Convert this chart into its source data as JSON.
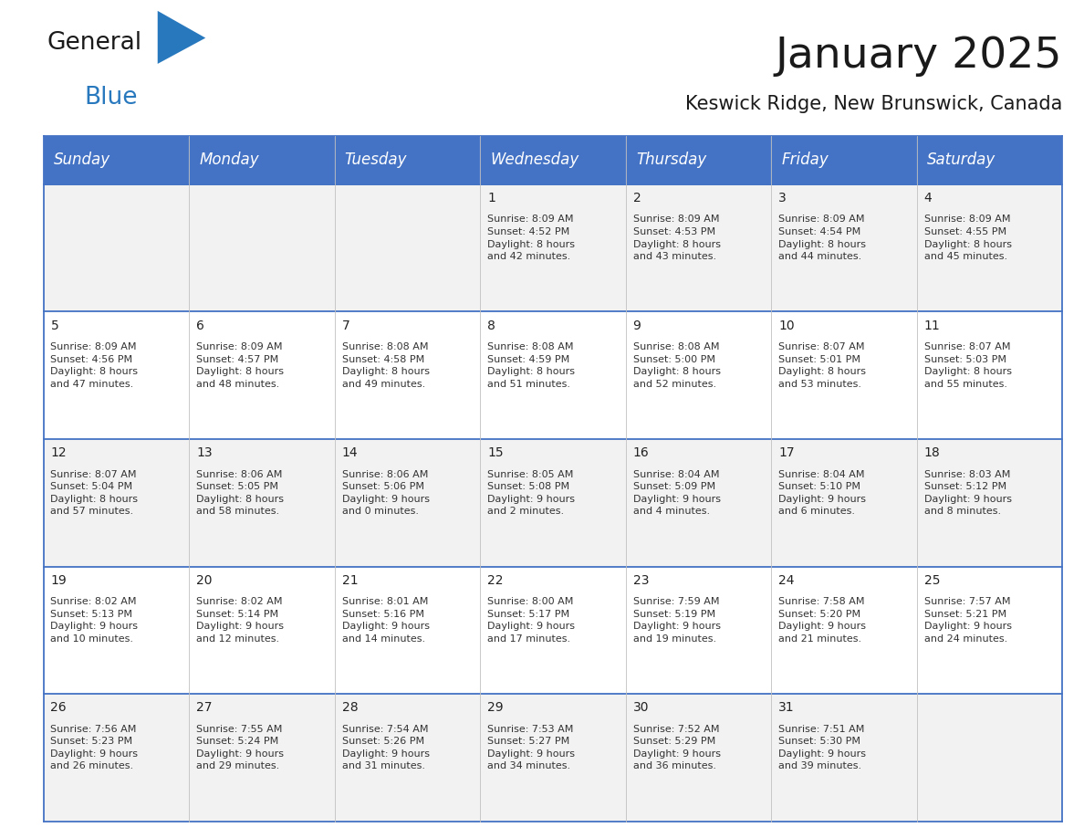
{
  "title": "January 2025",
  "subtitle": "Keswick Ridge, New Brunswick, Canada",
  "header_color": "#4472C4",
  "header_text_color": "#FFFFFF",
  "cell_bg_even": "#F2F2F2",
  "cell_bg_odd": "#FFFFFF",
  "border_color": "#4472C4",
  "row_line_color": "#4472C4",
  "col_line_color": "#C0C0C0",
  "days_of_week": [
    "Sunday",
    "Monday",
    "Tuesday",
    "Wednesday",
    "Thursday",
    "Friday",
    "Saturday"
  ],
  "title_fontsize": 34,
  "subtitle_fontsize": 15,
  "header_fontsize": 12,
  "day_num_fontsize": 10,
  "cell_fontsize": 8,
  "logo_color1": "#1a1a1a",
  "logo_color2": "#2878BE",
  "logo_triangle_color": "#2878BE",
  "weeks": [
    [
      {
        "day": "",
        "text": ""
      },
      {
        "day": "",
        "text": ""
      },
      {
        "day": "",
        "text": ""
      },
      {
        "day": "1",
        "text": "Sunrise: 8:09 AM\nSunset: 4:52 PM\nDaylight: 8 hours\nand 42 minutes."
      },
      {
        "day": "2",
        "text": "Sunrise: 8:09 AM\nSunset: 4:53 PM\nDaylight: 8 hours\nand 43 minutes."
      },
      {
        "day": "3",
        "text": "Sunrise: 8:09 AM\nSunset: 4:54 PM\nDaylight: 8 hours\nand 44 minutes."
      },
      {
        "day": "4",
        "text": "Sunrise: 8:09 AM\nSunset: 4:55 PM\nDaylight: 8 hours\nand 45 minutes."
      }
    ],
    [
      {
        "day": "5",
        "text": "Sunrise: 8:09 AM\nSunset: 4:56 PM\nDaylight: 8 hours\nand 47 minutes."
      },
      {
        "day": "6",
        "text": "Sunrise: 8:09 AM\nSunset: 4:57 PM\nDaylight: 8 hours\nand 48 minutes."
      },
      {
        "day": "7",
        "text": "Sunrise: 8:08 AM\nSunset: 4:58 PM\nDaylight: 8 hours\nand 49 minutes."
      },
      {
        "day": "8",
        "text": "Sunrise: 8:08 AM\nSunset: 4:59 PM\nDaylight: 8 hours\nand 51 minutes."
      },
      {
        "day": "9",
        "text": "Sunrise: 8:08 AM\nSunset: 5:00 PM\nDaylight: 8 hours\nand 52 minutes."
      },
      {
        "day": "10",
        "text": "Sunrise: 8:07 AM\nSunset: 5:01 PM\nDaylight: 8 hours\nand 53 minutes."
      },
      {
        "day": "11",
        "text": "Sunrise: 8:07 AM\nSunset: 5:03 PM\nDaylight: 8 hours\nand 55 minutes."
      }
    ],
    [
      {
        "day": "12",
        "text": "Sunrise: 8:07 AM\nSunset: 5:04 PM\nDaylight: 8 hours\nand 57 minutes."
      },
      {
        "day": "13",
        "text": "Sunrise: 8:06 AM\nSunset: 5:05 PM\nDaylight: 8 hours\nand 58 minutes."
      },
      {
        "day": "14",
        "text": "Sunrise: 8:06 AM\nSunset: 5:06 PM\nDaylight: 9 hours\nand 0 minutes."
      },
      {
        "day": "15",
        "text": "Sunrise: 8:05 AM\nSunset: 5:08 PM\nDaylight: 9 hours\nand 2 minutes."
      },
      {
        "day": "16",
        "text": "Sunrise: 8:04 AM\nSunset: 5:09 PM\nDaylight: 9 hours\nand 4 minutes."
      },
      {
        "day": "17",
        "text": "Sunrise: 8:04 AM\nSunset: 5:10 PM\nDaylight: 9 hours\nand 6 minutes."
      },
      {
        "day": "18",
        "text": "Sunrise: 8:03 AM\nSunset: 5:12 PM\nDaylight: 9 hours\nand 8 minutes."
      }
    ],
    [
      {
        "day": "19",
        "text": "Sunrise: 8:02 AM\nSunset: 5:13 PM\nDaylight: 9 hours\nand 10 minutes."
      },
      {
        "day": "20",
        "text": "Sunrise: 8:02 AM\nSunset: 5:14 PM\nDaylight: 9 hours\nand 12 minutes."
      },
      {
        "day": "21",
        "text": "Sunrise: 8:01 AM\nSunset: 5:16 PM\nDaylight: 9 hours\nand 14 minutes."
      },
      {
        "day": "22",
        "text": "Sunrise: 8:00 AM\nSunset: 5:17 PM\nDaylight: 9 hours\nand 17 minutes."
      },
      {
        "day": "23",
        "text": "Sunrise: 7:59 AM\nSunset: 5:19 PM\nDaylight: 9 hours\nand 19 minutes."
      },
      {
        "day": "24",
        "text": "Sunrise: 7:58 AM\nSunset: 5:20 PM\nDaylight: 9 hours\nand 21 minutes."
      },
      {
        "day": "25",
        "text": "Sunrise: 7:57 AM\nSunset: 5:21 PM\nDaylight: 9 hours\nand 24 minutes."
      }
    ],
    [
      {
        "day": "26",
        "text": "Sunrise: 7:56 AM\nSunset: 5:23 PM\nDaylight: 9 hours\nand 26 minutes."
      },
      {
        "day": "27",
        "text": "Sunrise: 7:55 AM\nSunset: 5:24 PM\nDaylight: 9 hours\nand 29 minutes."
      },
      {
        "day": "28",
        "text": "Sunrise: 7:54 AM\nSunset: 5:26 PM\nDaylight: 9 hours\nand 31 minutes."
      },
      {
        "day": "29",
        "text": "Sunrise: 7:53 AM\nSunset: 5:27 PM\nDaylight: 9 hours\nand 34 minutes."
      },
      {
        "day": "30",
        "text": "Sunrise: 7:52 AM\nSunset: 5:29 PM\nDaylight: 9 hours\nand 36 minutes."
      },
      {
        "day": "31",
        "text": "Sunrise: 7:51 AM\nSunset: 5:30 PM\nDaylight: 9 hours\nand 39 minutes."
      },
      {
        "day": "",
        "text": ""
      }
    ]
  ]
}
